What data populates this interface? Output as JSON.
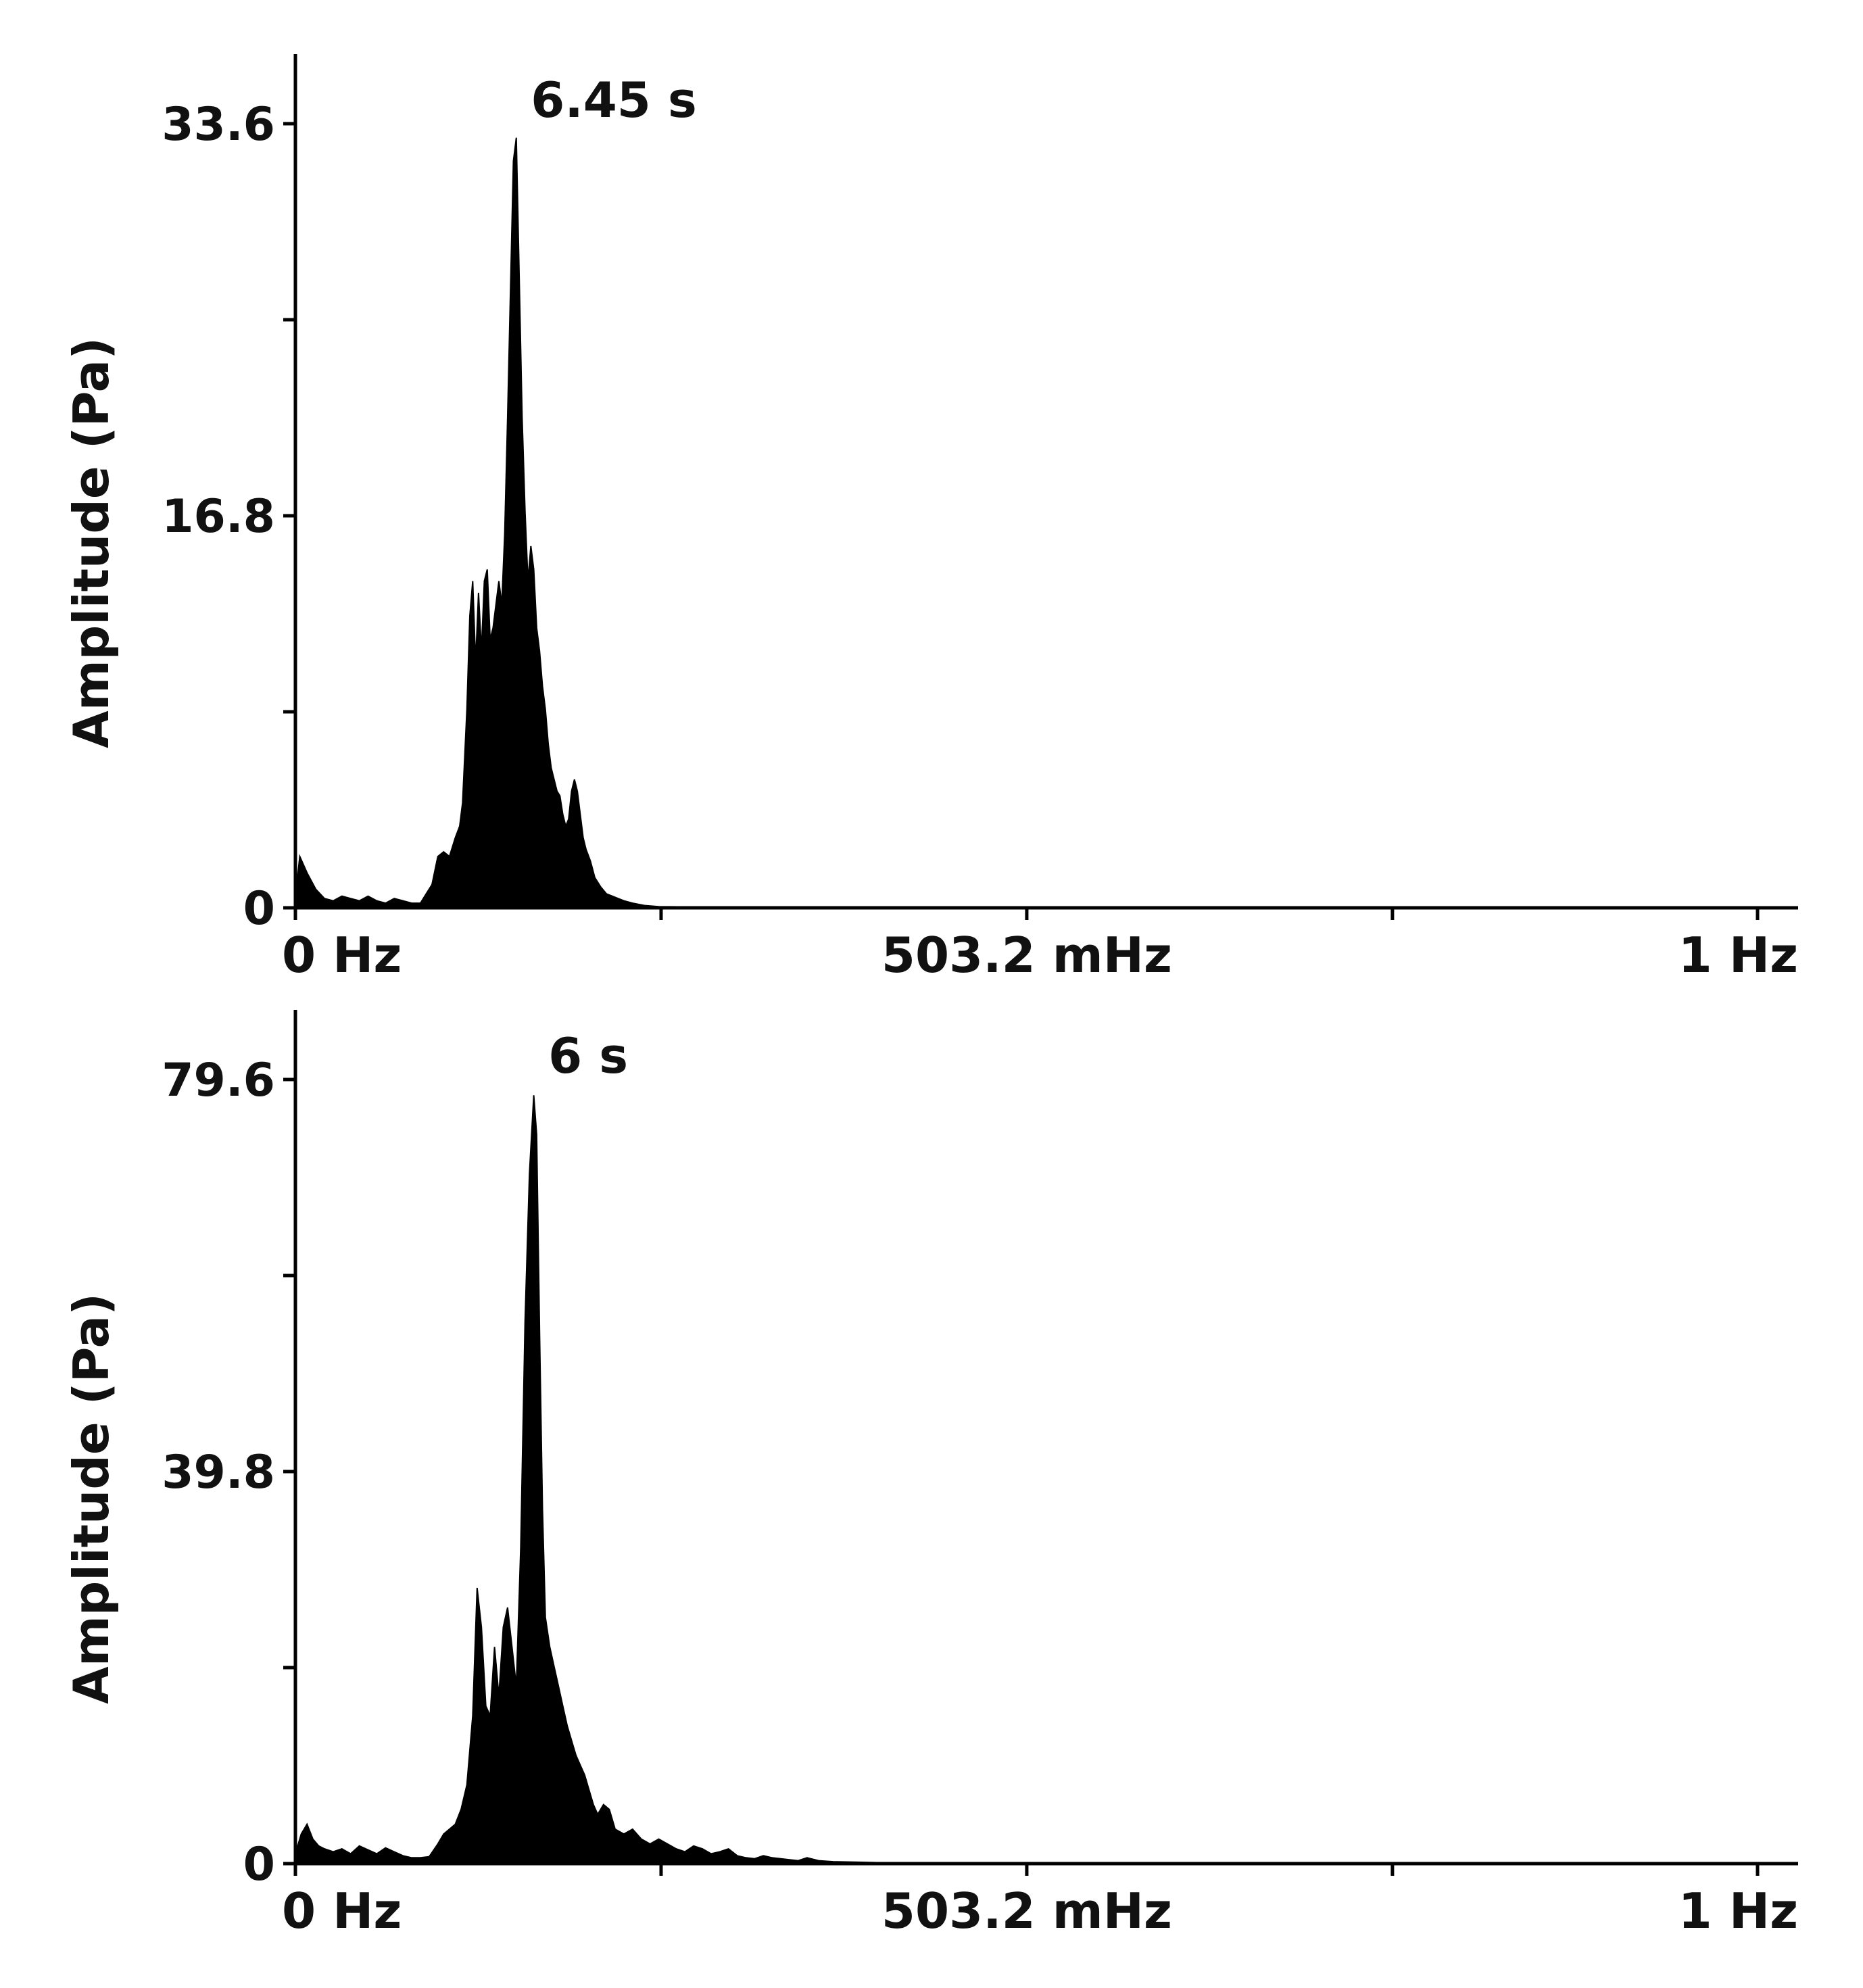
{
  "colors": {
    "fill": "#000000",
    "axis": "#000000",
    "text": "#111111",
    "background": "#ffffff"
  },
  "chart_data": [
    {
      "type": "area",
      "title": "",
      "ylabel": "Amplitude (Pa)",
      "xlabel": "",
      "xlim": [
        0,
        1.006
      ],
      "ylim": [
        0,
        33.6
      ],
      "y_ticks": [
        0,
        8.4,
        16.8,
        25.2,
        33.6
      ],
      "y_tick_labels": [
        "0",
        "",
        "16.8",
        "",
        "33.6"
      ],
      "x_ticks": [
        0,
        0.2516,
        0.5032,
        0.7548,
        1.006
      ],
      "x_tick_labels": [
        "0 Hz",
        "",
        "503.2 mHz",
        "",
        "1 Hz"
      ],
      "peak_annotation": {
        "text": "6.45 s",
        "x": 0.155,
        "y": 33.6
      },
      "grid": false,
      "series": [
        {
          "x": [
            0,
            0.003,
            0.008,
            0.014,
            0.02,
            0.026,
            0.032,
            0.038,
            0.044,
            0.05,
            0.056,
            0.062,
            0.068,
            0.074,
            0.08,
            0.086,
            0.09,
            0.094,
            0.098,
            0.102,
            0.106,
            0.11,
            0.113,
            0.115,
            0.118,
            0.12,
            0.122,
            0.124,
            0.126,
            0.128,
            0.13,
            0.132,
            0.134,
            0.136,
            0.138,
            0.14,
            0.142,
            0.144,
            0.146,
            0.148,
            0.15,
            0.152,
            0.154,
            0.156,
            0.158,
            0.16,
            0.162,
            0.164,
            0.166,
            0.168,
            0.17,
            0.172,
            0.174,
            0.176,
            0.178,
            0.18,
            0.182,
            0.184,
            0.186,
            0.188,
            0.19,
            0.192,
            0.194,
            0.196,
            0.198,
            0.2,
            0.203,
            0.206,
            0.21,
            0.214,
            0.218,
            0.222,
            0.226,
            0.232,
            0.24,
            0.25,
            0.3,
            0.4,
            0.6,
            0.8,
            1.0,
            1.006
          ],
          "y": [
            0.5,
            2.2,
            1.5,
            0.8,
            0.4,
            0.3,
            0.5,
            0.4,
            0.3,
            0.5,
            0.3,
            0.2,
            0.4,
            0.3,
            0.2,
            0.2,
            0.6,
            1.0,
            2.2,
            2.4,
            2.2,
            3.0,
            3.5,
            4.5,
            8.5,
            12.5,
            14.0,
            10.5,
            13.5,
            11.0,
            14.0,
            14.5,
            11.5,
            12.0,
            13.0,
            14.0,
            13.0,
            16.0,
            21.0,
            26.5,
            32.0,
            33.0,
            27.0,
            21.0,
            17.0,
            14.0,
            15.5,
            14.5,
            12.0,
            11.0,
            9.5,
            8.5,
            7.0,
            6.0,
            5.5,
            5.0,
            4.8,
            4.0,
            3.5,
            3.8,
            5.0,
            5.5,
            5.0,
            4.0,
            3.0,
            2.5,
            2.0,
            1.3,
            0.9,
            0.6,
            0.5,
            0.4,
            0.3,
            0.2,
            0.1,
            0.05,
            0.03,
            0.02,
            0.01,
            0.01,
            0.01,
            0
          ]
        }
      ]
    },
    {
      "type": "area",
      "title": "",
      "ylabel": "Amplitude (Pa)",
      "xlabel": "",
      "xlim": [
        0,
        1.006
      ],
      "ylim": [
        0,
        79.6
      ],
      "y_ticks": [
        0,
        19.9,
        39.8,
        59.7,
        79.6
      ],
      "y_tick_labels": [
        "0",
        "",
        "39.8",
        "",
        "79.6"
      ],
      "x_ticks": [
        0,
        0.2516,
        0.5032,
        0.7548,
        1.006
      ],
      "x_tick_labels": [
        "0 Hz",
        "",
        "503.2 mHz",
        "",
        "1 Hz"
      ],
      "peak_annotation": {
        "text": "6 s",
        "x": 0.167,
        "y": 79.6
      },
      "grid": false,
      "series": [
        {
          "x": [
            0,
            0.004,
            0.008,
            0.012,
            0.016,
            0.02,
            0.026,
            0.032,
            0.038,
            0.044,
            0.05,
            0.056,
            0.062,
            0.068,
            0.074,
            0.08,
            0.086,
            0.092,
            0.098,
            0.102,
            0.106,
            0.11,
            0.114,
            0.118,
            0.122,
            0.125,
            0.128,
            0.131,
            0.134,
            0.137,
            0.14,
            0.143,
            0.146,
            0.149,
            0.152,
            0.155,
            0.158,
            0.161,
            0.164,
            0.166,
            0.168,
            0.17,
            0.172,
            0.175,
            0.178,
            0.181,
            0.184,
            0.187,
            0.19,
            0.193,
            0.196,
            0.199,
            0.202,
            0.205,
            0.208,
            0.212,
            0.216,
            0.22,
            0.226,
            0.232,
            0.238,
            0.244,
            0.25,
            0.256,
            0.262,
            0.268,
            0.274,
            0.28,
            0.286,
            0.292,
            0.298,
            0.304,
            0.31,
            0.316,
            0.322,
            0.328,
            0.334,
            0.34,
            0.346,
            0.352,
            0.36,
            0.37,
            0.4,
            0.5,
            0.7,
            0.9,
            1.006
          ],
          "y": [
            1.0,
            3.0,
            4.0,
            2.5,
            1.8,
            1.5,
            1.2,
            1.5,
            1.0,
            1.8,
            1.4,
            1.0,
            1.6,
            1.2,
            0.8,
            0.6,
            0.6,
            0.7,
            2.0,
            3.0,
            3.5,
            4.0,
            5.5,
            8.0,
            15.0,
            28.0,
            24.0,
            16.0,
            15.0,
            22.0,
            17.0,
            24.0,
            26.0,
            22.0,
            18.0,
            32.0,
            55.0,
            70.0,
            78.0,
            74.0,
            54.0,
            36.0,
            25.0,
            22.0,
            20.0,
            18.0,
            16.0,
            14.0,
            12.5,
            11.0,
            10.0,
            9.0,
            7.5,
            6.0,
            5.0,
            6.0,
            5.5,
            3.5,
            3.0,
            3.5,
            2.5,
            2.0,
            2.5,
            2.0,
            1.5,
            1.2,
            1.8,
            1.5,
            1.0,
            1.2,
            1.5,
            0.8,
            0.6,
            0.5,
            0.8,
            0.6,
            0.5,
            0.4,
            0.3,
            0.6,
            0.3,
            0.2,
            0.1,
            0.05,
            0.02,
            0.01,
            0
          ]
        }
      ]
    }
  ]
}
